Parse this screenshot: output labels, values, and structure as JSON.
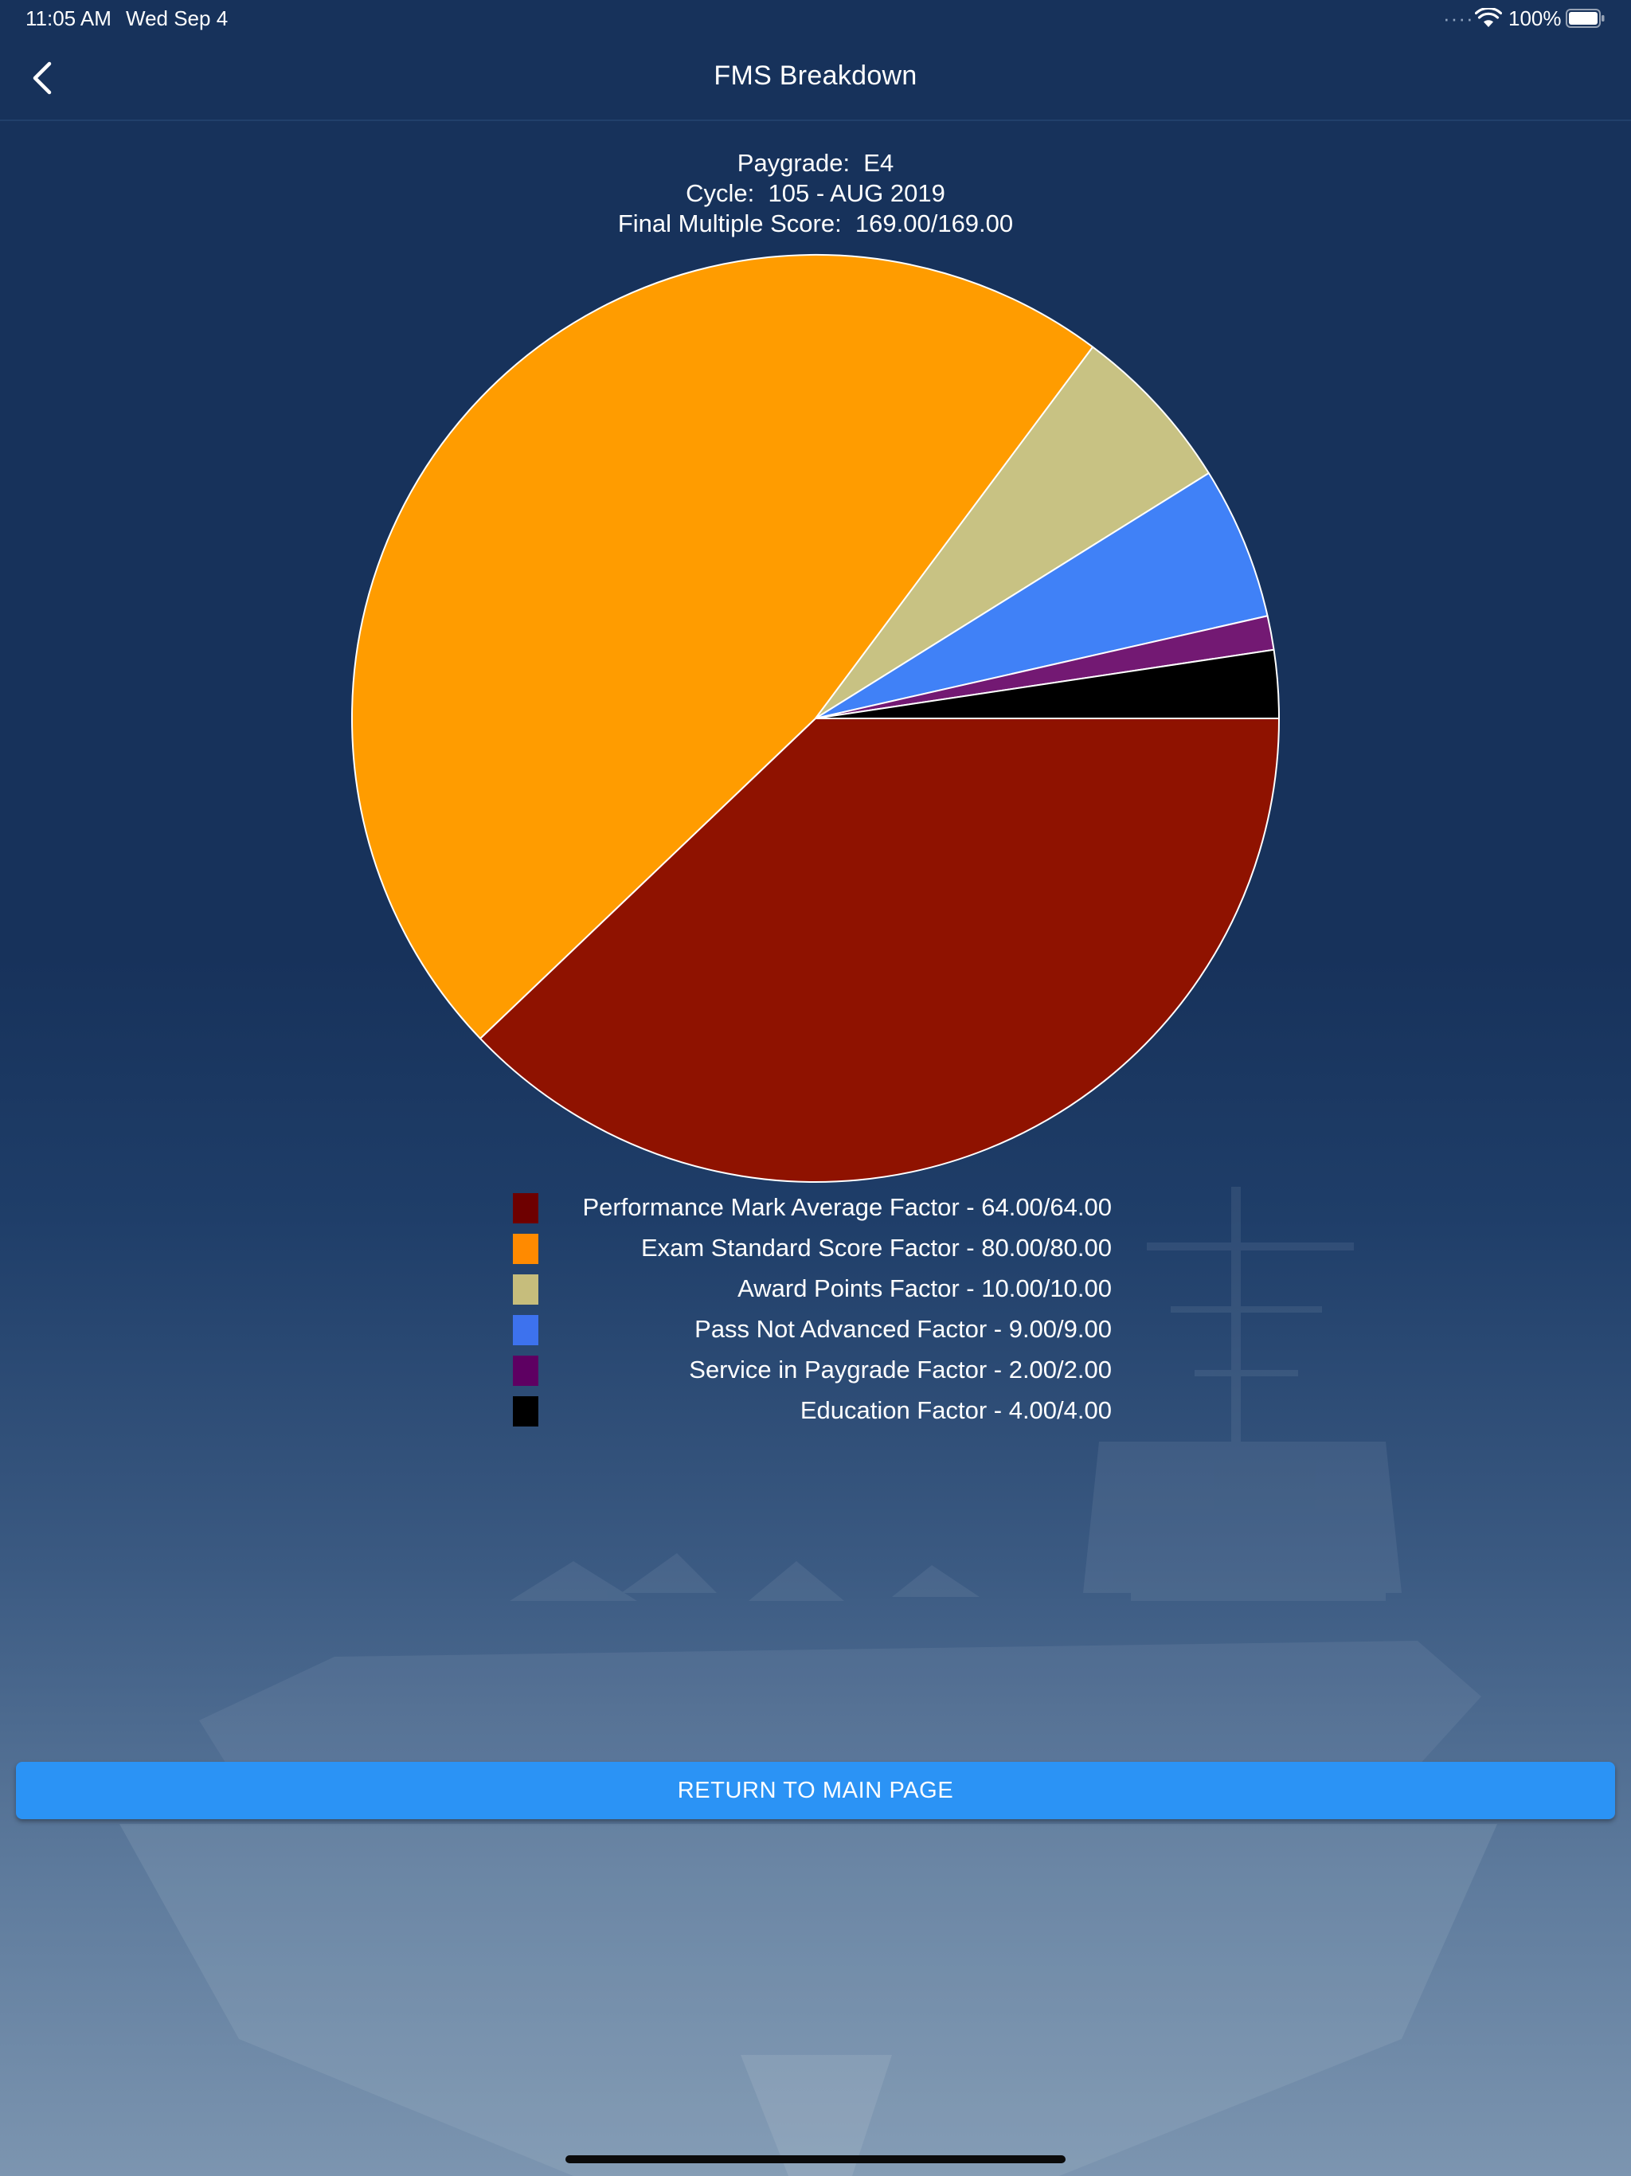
{
  "status_bar": {
    "time": "11:05 AM",
    "date": "Wed Sep 4",
    "battery_percent": "100%",
    "battery_level": 1.0,
    "icons": [
      "wifi-icon",
      "battery-icon"
    ]
  },
  "nav": {
    "title": "FMS Breakdown",
    "back_icon": "chevron-left-icon"
  },
  "summary": {
    "paygrade": "Paygrade:  E4",
    "cycle": "Cycle:  105 - AUG 2019",
    "final_score": "Final Multiple Score:  169.00/169.00"
  },
  "chart_data": {
    "type": "pie",
    "title": "",
    "slices": [
      {
        "label": "Performance Mark Average Factor - 64.00/64.00",
        "value": 64.0,
        "color": "#8f1200"
      },
      {
        "label": "Exam Standard Score Factor - 80.00/80.00",
        "value": 80.0,
        "color": "#ff9c00"
      },
      {
        "label": "Award Points Factor - 10.00/10.00",
        "value": 10.0,
        "color": "#c8c283"
      },
      {
        "label": "Pass Not Advanced Factor - 9.00/9.00",
        "value": 9.0,
        "color": "#4081f7"
      },
      {
        "label": "Service in Paygrade Factor - 2.00/2.00",
        "value": 2.0,
        "color": "#731973"
      },
      {
        "label": "Education Factor - 4.00/4.00",
        "value": 4.0,
        "color": "#000000"
      }
    ],
    "legend_placement": "bottom",
    "slice_border_color": "#ffffff"
  },
  "legend": {
    "swatch_colors": [
      "#6e0000",
      "#ff8a00",
      "#c6bd7c",
      "#3d72ee",
      "#5e0062",
      "#000000"
    ]
  },
  "actions": {
    "return_label": "RETURN TO MAIN PAGE"
  },
  "colors": {
    "background": "#17325b",
    "button": "#2b93f5",
    "text": "#ffffff"
  }
}
